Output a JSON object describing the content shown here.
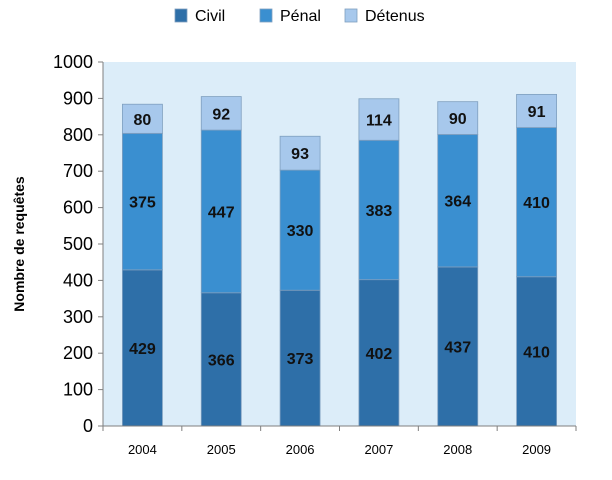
{
  "chart_data": {
    "type": "bar",
    "stacked": true,
    "categories": [
      "2004",
      "2005",
      "2006",
      "2007",
      "2008",
      "2009"
    ],
    "series": [
      {
        "name": "Civil",
        "color": "#2e6fa8",
        "values": [
          429,
          366,
          373,
          402,
          437,
          410
        ]
      },
      {
        "name": "Pénal",
        "color": "#3a8fd0",
        "values": [
          375,
          447,
          330,
          383,
          364,
          410
        ]
      },
      {
        "name": "Détenus",
        "color": "#a7c8ec",
        "values": [
          80,
          92,
          93,
          114,
          90,
          91
        ]
      }
    ],
    "title": "",
    "xlabel": "",
    "ylabel": "Nombre de requêtes",
    "ylim": [
      0,
      1000
    ],
    "yticks": [
      0,
      100,
      200,
      300,
      400,
      500,
      600,
      700,
      800,
      900,
      1000
    ],
    "grid": false,
    "legend": "top-center",
    "plot_background": "#dcedf9"
  }
}
